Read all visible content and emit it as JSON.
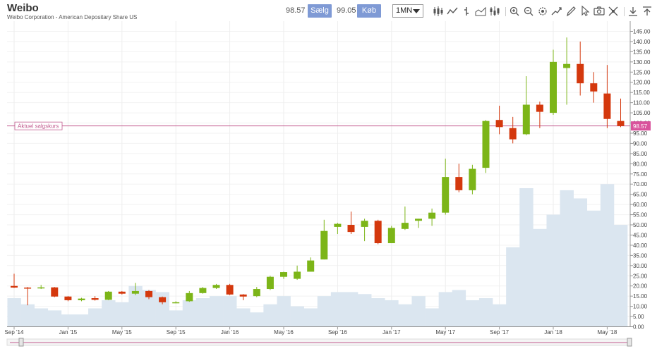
{
  "header": {
    "title": "Weibo",
    "subtitle": "Weibo Corporation - American Depositary Share US",
    "sell_price": "98.57",
    "sell_label": "Sælg",
    "buy_price": "99.05",
    "buy_label": "Køb",
    "period": "1MN"
  },
  "toolbar": {
    "icons": [
      "candlestick-icon",
      "line-chart-icon",
      "ohlc-icon",
      "area-chart-icon",
      "indicators-icon",
      "zoom-in-icon",
      "zoom-out-icon",
      "settings-icon",
      "trend-icon",
      "draw-icon",
      "cursor-icon",
      "camera-icon",
      "crosshair-icon",
      "download-icon",
      "expand-icon"
    ]
  },
  "colors": {
    "up": "#7cb518",
    "down": "#d4380d",
    "volume": "#dbe6f0",
    "price_line": "#c25b8f",
    "price_badge": "#d9539c",
    "button": "#7f9ad5"
  },
  "chart_data": {
    "type": "candlestick",
    "current_price_label": "Aktuel salgskurs",
    "current_price": 98.57,
    "current_price_text": "98.57",
    "ylim": [
      0,
      145
    ],
    "y_ticks": [
      "0.00",
      "5.00",
      "10.00",
      "15.00",
      "20.00",
      "25.00",
      "30.00",
      "35.00",
      "40.00",
      "45.00",
      "50.00",
      "55.00",
      "60.00",
      "65.00",
      "70.00",
      "75.00",
      "80.00",
      "85.00",
      "90.00",
      "95.00",
      "100.00",
      "105.00",
      "110.00",
      "115.00",
      "120.00",
      "125.00",
      "130.00",
      "135.00",
      "140.00",
      "145.00"
    ],
    "x_ticks": [
      {
        "label": "Sep '14",
        "index": 0
      },
      {
        "label": "Jan '15",
        "index": 4
      },
      {
        "label": "May '15",
        "index": 8
      },
      {
        "label": "Sep '15",
        "index": 12
      },
      {
        "label": "Jan '16",
        "index": 16
      },
      {
        "label": "May '16",
        "index": 20
      },
      {
        "label": "Sep '16",
        "index": 24
      },
      {
        "label": "Jan '17",
        "index": 28
      },
      {
        "label": "May '17",
        "index": 32
      },
      {
        "label": "Sep '17",
        "index": 36
      },
      {
        "label": "Jan '18",
        "index": 40
      },
      {
        "label": "May '18",
        "index": 44
      }
    ],
    "candles": [
      {
        "o": 20.0,
        "h": 26.0,
        "l": 19.0,
        "c": 19.2
      },
      {
        "o": 19.2,
        "h": 19.5,
        "l": 10.5,
        "c": 19.0
      },
      {
        "o": 19.0,
        "h": 20.5,
        "l": 18.5,
        "c": 19.3
      },
      {
        "o": 19.3,
        "h": 19.5,
        "l": 14.5,
        "c": 14.8
      },
      {
        "o": 14.8,
        "h": 15.0,
        "l": 12.5,
        "c": 13.0
      },
      {
        "o": 13.0,
        "h": 14.2,
        "l": 12.5,
        "c": 13.8
      },
      {
        "o": 14.0,
        "h": 15.0,
        "l": 12.8,
        "c": 13.2
      },
      {
        "o": 13.2,
        "h": 17.5,
        "l": 13.0,
        "c": 17.2
      },
      {
        "o": 17.2,
        "h": 17.5,
        "l": 15.8,
        "c": 16.2
      },
      {
        "o": 16.2,
        "h": 21.5,
        "l": 15.5,
        "c": 17.5
      },
      {
        "o": 17.5,
        "h": 18.0,
        "l": 13.5,
        "c": 14.5
      },
      {
        "o": 14.5,
        "h": 14.8,
        "l": 11.0,
        "c": 12.0
      },
      {
        "o": 12.0,
        "h": 12.5,
        "l": 11.5,
        "c": 12.0
      },
      {
        "o": 12.5,
        "h": 17.5,
        "l": 12.2,
        "c": 16.5
      },
      {
        "o": 16.5,
        "h": 19.5,
        "l": 16.2,
        "c": 19.0
      },
      {
        "o": 19.0,
        "h": 21.0,
        "l": 18.5,
        "c": 20.5
      },
      {
        "o": 20.5,
        "h": 21.0,
        "l": 15.5,
        "c": 15.8
      },
      {
        "o": 15.8,
        "h": 16.0,
        "l": 13.0,
        "c": 14.8
      },
      {
        "o": 15.0,
        "h": 19.5,
        "l": 14.5,
        "c": 18.5
      },
      {
        "o": 18.5,
        "h": 25.0,
        "l": 18.0,
        "c": 24.5
      },
      {
        "o": 24.5,
        "h": 27.0,
        "l": 23.5,
        "c": 26.8
      },
      {
        "o": 23.5,
        "h": 30.0,
        "l": 23.0,
        "c": 27.0
      },
      {
        "o": 27.0,
        "h": 34.0,
        "l": 27.0,
        "c": 32.5
      },
      {
        "o": 33.0,
        "h": 52.5,
        "l": 33.0,
        "c": 47.0
      },
      {
        "o": 49.0,
        "h": 51.0,
        "l": 45.5,
        "c": 50.5
      },
      {
        "o": 50.0,
        "h": 56.5,
        "l": 45.5,
        "c": 46.5
      },
      {
        "o": 49.0,
        "h": 53.0,
        "l": 42.0,
        "c": 52.0
      },
      {
        "o": 52.0,
        "h": 52.5,
        "l": 40.5,
        "c": 41.0
      },
      {
        "o": 41.0,
        "h": 49.5,
        "l": 41.0,
        "c": 48.5
      },
      {
        "o": 48.0,
        "h": 59.0,
        "l": 47.5,
        "c": 51.0
      },
      {
        "o": 52.0,
        "h": 53.0,
        "l": 48.5,
        "c": 53.0
      },
      {
        "o": 53.0,
        "h": 58.0,
        "l": 49.5,
        "c": 56.0
      },
      {
        "o": 56.0,
        "h": 82.5,
        "l": 55.0,
        "c": 73.5
      },
      {
        "o": 73.5,
        "h": 80.0,
        "l": 66.0,
        "c": 67.0
      },
      {
        "o": 67.0,
        "h": 79.5,
        "l": 65.0,
        "c": 77.5
      },
      {
        "o": 78.0,
        "h": 101.5,
        "l": 75.5,
        "c": 101.0
      },
      {
        "o": 101.5,
        "h": 108.5,
        "l": 94.5,
        "c": 98.0
      },
      {
        "o": 97.5,
        "h": 103.0,
        "l": 90.0,
        "c": 92.0
      },
      {
        "o": 94.5,
        "h": 123.0,
        "l": 94.0,
        "c": 109.0
      },
      {
        "o": 109.0,
        "h": 110.5,
        "l": 97.5,
        "c": 105.5
      },
      {
        "o": 105.0,
        "h": 136.0,
        "l": 104.0,
        "c": 130.0
      },
      {
        "o": 127.0,
        "h": 142.0,
        "l": 109.0,
        "c": 129.0
      },
      {
        "o": 129.0,
        "h": 140.0,
        "l": 113.5,
        "c": 119.5
      },
      {
        "o": 119.5,
        "h": 125.0,
        "l": 110.0,
        "c": 115.5
      },
      {
        "o": 114.5,
        "h": 128.5,
        "l": 97.5,
        "c": 102.0
      },
      {
        "o": 101.0,
        "h": 112.0,
        "l": 98.0,
        "c": 98.5
      }
    ],
    "volume": [
      14,
      11,
      9,
      8,
      6,
      6,
      9,
      13,
      12,
      20,
      18,
      17,
      8,
      13,
      14,
      15,
      15,
      9,
      7,
      11,
      15,
      10,
      9,
      15,
      17,
      17,
      16,
      14,
      13,
      11,
      15,
      9,
      17,
      18,
      13,
      14,
      11,
      39,
      68,
      48,
      55,
      67,
      63,
      57,
      70,
      50
    ]
  }
}
